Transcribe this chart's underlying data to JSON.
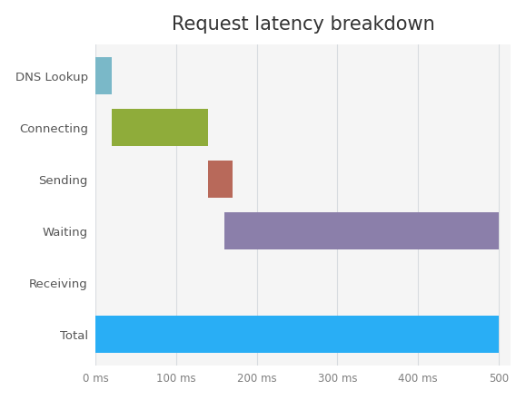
{
  "title": "Request latency breakdown",
  "categories": [
    "DNS Lookup",
    "Connecting",
    "Sending",
    "Waiting",
    "Receiving",
    "Total"
  ],
  "bar_starts": [
    0,
    20,
    140,
    160,
    0,
    0
  ],
  "bar_widths": [
    20,
    120,
    30,
    340,
    0,
    500
  ],
  "bar_colors": [
    "#7ab8c8",
    "#8fac3a",
    "#b8695a",
    "#8b7faa",
    null,
    "#29aef5"
  ],
  "xlim": [
    0,
    515
  ],
  "x_ticks": [
    0,
    100,
    200,
    300,
    400,
    500
  ],
  "x_tick_labels": [
    "0 ms",
    "100 ms",
    "200 ms",
    "300 ms",
    "400 ms",
    "500"
  ],
  "background_color": "#ffffff",
  "plot_bg_color": "#f5f5f5",
  "grid_color": "#d8dce0",
  "title_fontsize": 15,
  "tick_label_color": "#7f7f7f",
  "y_label_color": "#555555",
  "bar_height": 0.72,
  "figsize": [
    5.79,
    4.41
  ],
  "dpi": 100
}
